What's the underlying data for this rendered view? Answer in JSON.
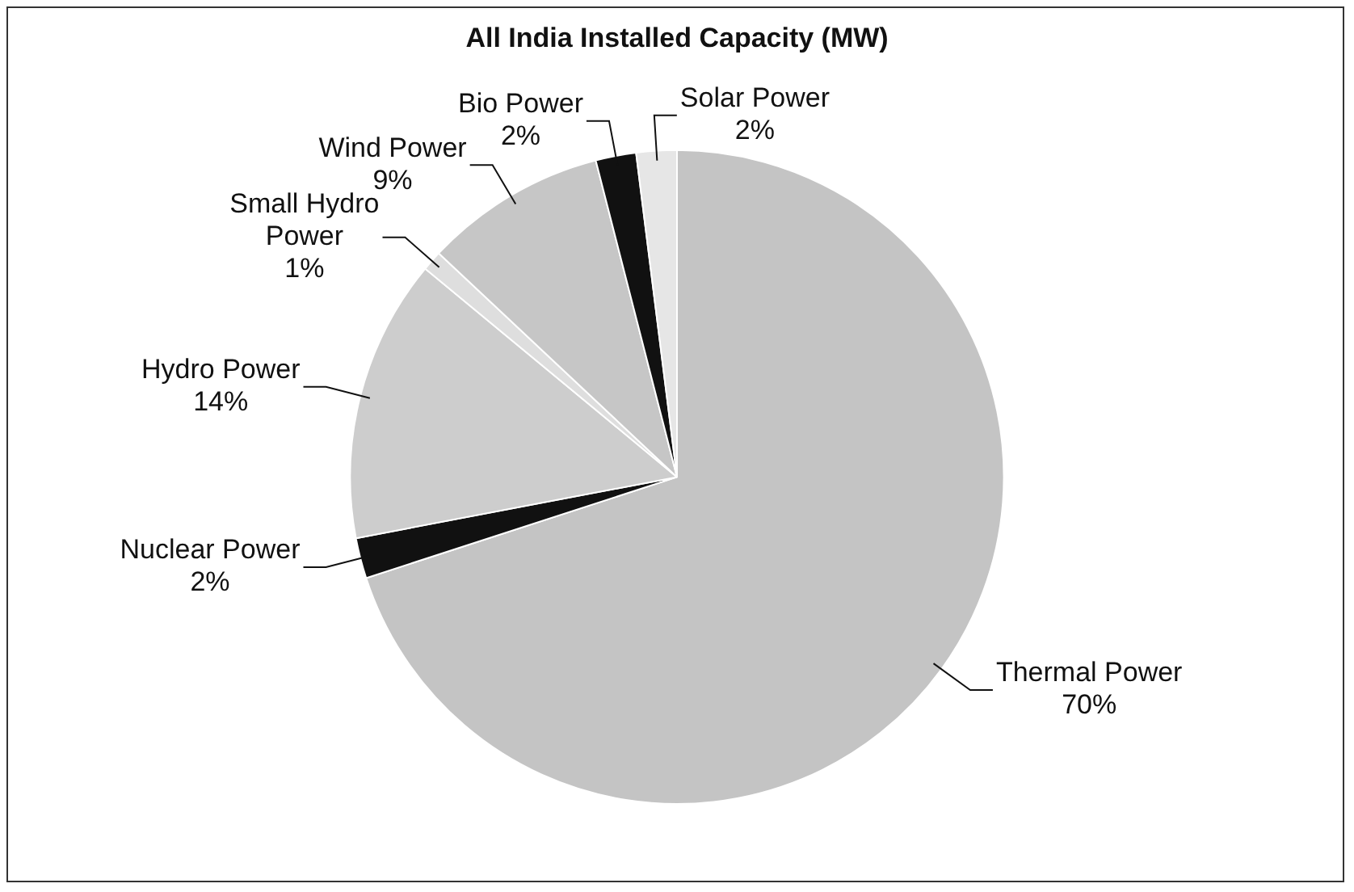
{
  "chart_data": {
    "type": "pie",
    "title": "All India Installed Capacity (MW)",
    "categories": [
      "Thermal Power",
      "Nuclear Power",
      "Hydro Power",
      "Small Hydro Power",
      "Wind Power",
      "Bio Power",
      "Solar Power"
    ],
    "values": [
      70,
      2,
      14,
      1,
      9,
      2,
      2
    ],
    "value_labels": [
      "70%",
      "2%",
      "14%",
      "1%",
      "9%",
      "2%",
      "2%"
    ],
    "colors": [
      "#c4c4c4",
      "#111111",
      "#cdcdcd",
      "#dedede",
      "#c6c6c6",
      "#111111",
      "#e6e6e6"
    ],
    "legend": false
  }
}
